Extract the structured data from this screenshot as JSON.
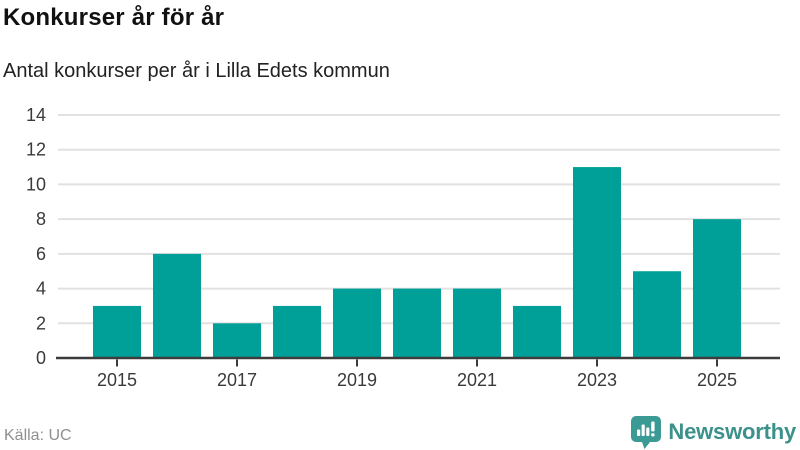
{
  "header": {
    "title": "Konkurser år för år",
    "subtitle": "Antal konkurser per år i Lilla Edets kommun"
  },
  "chart_data": {
    "type": "bar",
    "title": "Konkurser år för år",
    "subtitle": "Antal konkurser per år i Lilla Edets kommun",
    "categories": [
      "2015",
      "2016",
      "2017",
      "2018",
      "2019",
      "2020",
      "2021",
      "2022",
      "2023",
      "2024",
      "2025"
    ],
    "values": [
      3,
      6,
      2,
      3,
      4,
      4,
      4,
      3,
      11,
      5,
      8
    ],
    "xlabel": "",
    "ylabel": "",
    "ylim": [
      0,
      14
    ],
    "yticks": [
      0,
      2,
      4,
      6,
      8,
      10,
      12,
      14
    ],
    "xtick_labels": [
      "2015",
      "2017",
      "2019",
      "2021",
      "2023",
      "2025"
    ],
    "grid": true,
    "legend": false,
    "bar_color": "#00A098"
  },
  "footer": {
    "source": "Källa: UC",
    "brand": "Newsworthy"
  },
  "colors": {
    "bar": "#00A098",
    "axis_line": "#3c3c3c",
    "gridline": "#e1e1e1",
    "tick_text": "#3a3a3a",
    "source_text": "#8f8f8f",
    "brand_teal_icon": "#3b9a94",
    "brand_teal_text": "#3c918b"
  }
}
